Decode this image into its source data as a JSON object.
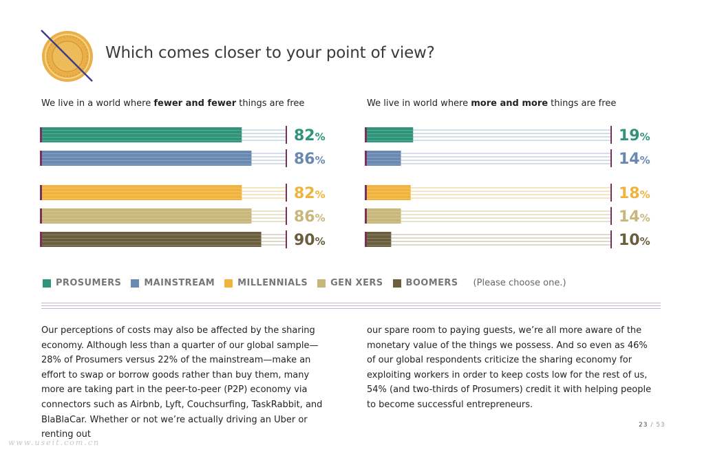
{
  "header": {
    "title": "Which comes closer to your point of view?",
    "logo_icon": "struck-coin-icon"
  },
  "colors": {
    "prosumers": "#2f9479",
    "mainstream": "#6a89b2",
    "millennials": "#f0b43e",
    "gen_xers": "#c8b77a",
    "boomers": "#6a5e3e",
    "stripe_neutral": "#d6dbe2",
    "accent": "#7a2f5c"
  },
  "chart_data": [
    {
      "type": "bar",
      "orientation": "horizontal",
      "title_parts": [
        "We live in a world where ",
        "fewer and fewer",
        " things are free"
      ],
      "xlim": [
        0,
        100
      ],
      "categories": [
        "Prosumers",
        "Mainstream",
        "Millennials",
        "Gen Xers",
        "Boomers"
      ],
      "values": [
        82,
        86,
        82,
        86,
        90
      ],
      "labels": [
        "82",
        "86",
        "82",
        "86",
        "90"
      ],
      "unit": "%"
    },
    {
      "type": "bar",
      "orientation": "horizontal",
      "title_parts": [
        "We live in world where ",
        "more and more",
        " things are free"
      ],
      "xlim": [
        0,
        100
      ],
      "categories": [
        "Prosumers",
        "Mainstream",
        "Millennials",
        "Gen Xers",
        "Boomers"
      ],
      "values": [
        19,
        14,
        18,
        14,
        10
      ],
      "labels": [
        "19",
        "14",
        "18",
        "14",
        "10"
      ],
      "unit": "%"
    }
  ],
  "legend": {
    "items": [
      {
        "label": "PROSUMERS",
        "color": "#2f9479"
      },
      {
        "label": "MAINSTREAM",
        "color": "#6a89b2"
      },
      {
        "label": "MILLENNIALS",
        "color": "#f0b43e"
      },
      {
        "label": "GEN XERS",
        "color": "#c8b77a"
      },
      {
        "label": "BOOMERS",
        "color": "#6a5e3e"
      }
    ],
    "note": "(Please choose one.)"
  },
  "body": {
    "left": "Our perceptions of costs may also be affected by the sharing economy. Although less than a quarter of our global sample—28% of Prosumers versus 22% of the mainstream—make an effort to swap or borrow goods rather than buy them, many more are taking part in the peer-to-peer (P2P) economy via connectors such as Airbnb, Lyft, Couchsurfing, TaskRabbit, and BlaBlaCar. Whether or not we’re actually driving an Uber or renting out",
    "right": "our spare room to paying guests, we’re all more aware of the monetary value of the things we possess. And so even as 46% of our global respondents criticize the sharing economy for exploiting workers in order to keep costs low for the rest of us, 54% (and two-thirds of Prosumers) credit it with helping people to become successful entrepreneurs."
  },
  "page": {
    "current": "23",
    "separator": "/",
    "total": "53"
  },
  "watermark": "www.useit.com.cn"
}
